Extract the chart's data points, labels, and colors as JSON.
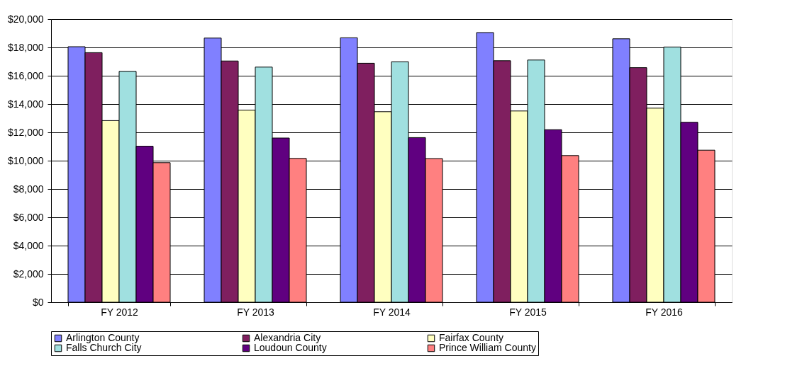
{
  "chart_data": {
    "type": "bar",
    "categories": [
      "FY 2012",
      "FY 2013",
      "FY 2014",
      "FY 2015",
      "FY 2016"
    ],
    "series": [
      {
        "name": "Arlington County",
        "color": "#8080ff",
        "values": [
          18050,
          18660,
          18680,
          19050,
          18610
        ]
      },
      {
        "name": "Alexandria City",
        "color": "#7f1f5f",
        "values": [
          17630,
          17040,
          16880,
          17060,
          16570
        ]
      },
      {
        "name": "Fairfax County",
        "color": "#ffffc0",
        "values": [
          12830,
          13570,
          13460,
          13510,
          13710
        ]
      },
      {
        "name": "Falls Church City",
        "color": "#a0e0e0",
        "values": [
          16310,
          16610,
          16990,
          17110,
          18030
        ]
      },
      {
        "name": "Loudoun County",
        "color": "#600080",
        "values": [
          11020,
          11600,
          11630,
          12190,
          12710
        ]
      },
      {
        "name": "Prince William County",
        "color": "#ff8080",
        "values": [
          9860,
          10160,
          10150,
          10360,
          10740
        ]
      }
    ],
    "ylim": [
      0,
      20000
    ],
    "yticks": [
      {
        "value": 0,
        "label": "$0"
      },
      {
        "value": 2000,
        "label": "$2,000"
      },
      {
        "value": 4000,
        "label": "$4,000"
      },
      {
        "value": 6000,
        "label": "$6,000"
      },
      {
        "value": 8000,
        "label": "$8,000"
      },
      {
        "value": 10000,
        "label": "$10,000"
      },
      {
        "value": 12000,
        "label": "$12,000"
      },
      {
        "value": 14000,
        "label": "$14,000"
      },
      {
        "value": 16000,
        "label": "$16,000"
      },
      {
        "value": 18000,
        "label": "$18,000"
      },
      {
        "value": 20000,
        "label": "$20,000"
      }
    ],
    "grid": "y",
    "legend": "bottom"
  }
}
